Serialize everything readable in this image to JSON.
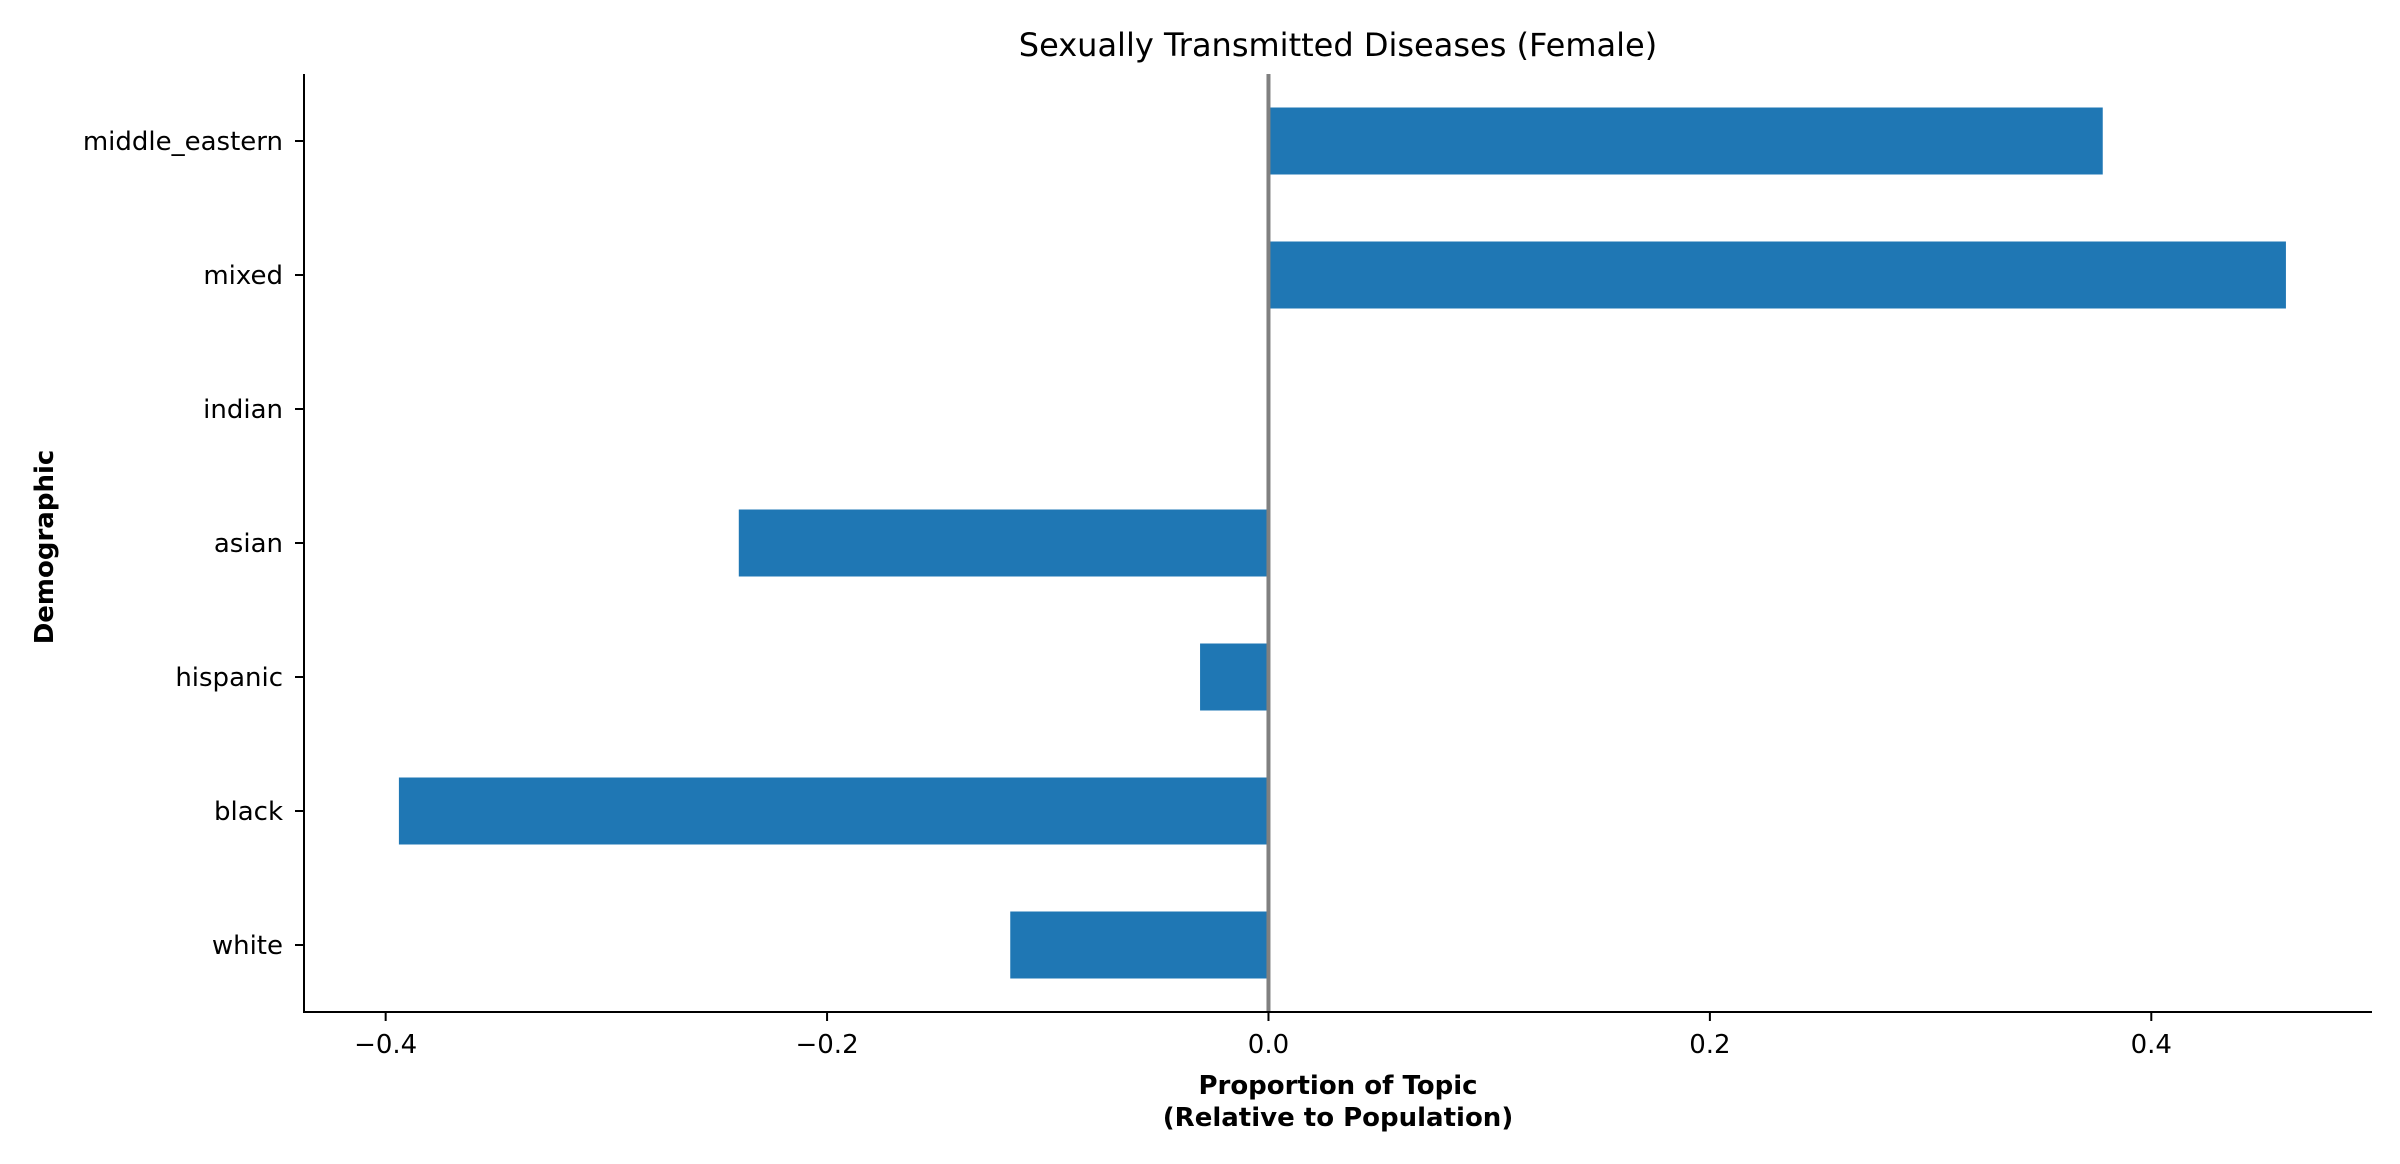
{
  "chart_data": {
    "type": "bar",
    "orientation": "horizontal",
    "title": "Sexually Transmitted Diseases (Female)",
    "xlabel_lines": [
      "Proportion of Topic",
      "(Relative to Population)"
    ],
    "ylabel": "Demographic",
    "categories": [
      "middle_eastern",
      "mixed",
      "indian",
      "asian",
      "hispanic",
      "black",
      "white"
    ],
    "values": [
      0.378,
      0.461,
      0.0,
      -0.24,
      -0.031,
      -0.394,
      -0.117
    ],
    "xlim": [
      -0.437,
      0.5
    ],
    "xticks": [
      -0.4,
      -0.2,
      0.0,
      0.2,
      0.4
    ],
    "xtick_labels": [
      "−0.4",
      "−0.2",
      "0.0",
      "0.2",
      "0.4"
    ],
    "grid": false,
    "legend": "none",
    "zero_line": true,
    "bar_color": "#1f77b4",
    "zero_line_color": "#808080",
    "axis_color": "#000000"
  }
}
